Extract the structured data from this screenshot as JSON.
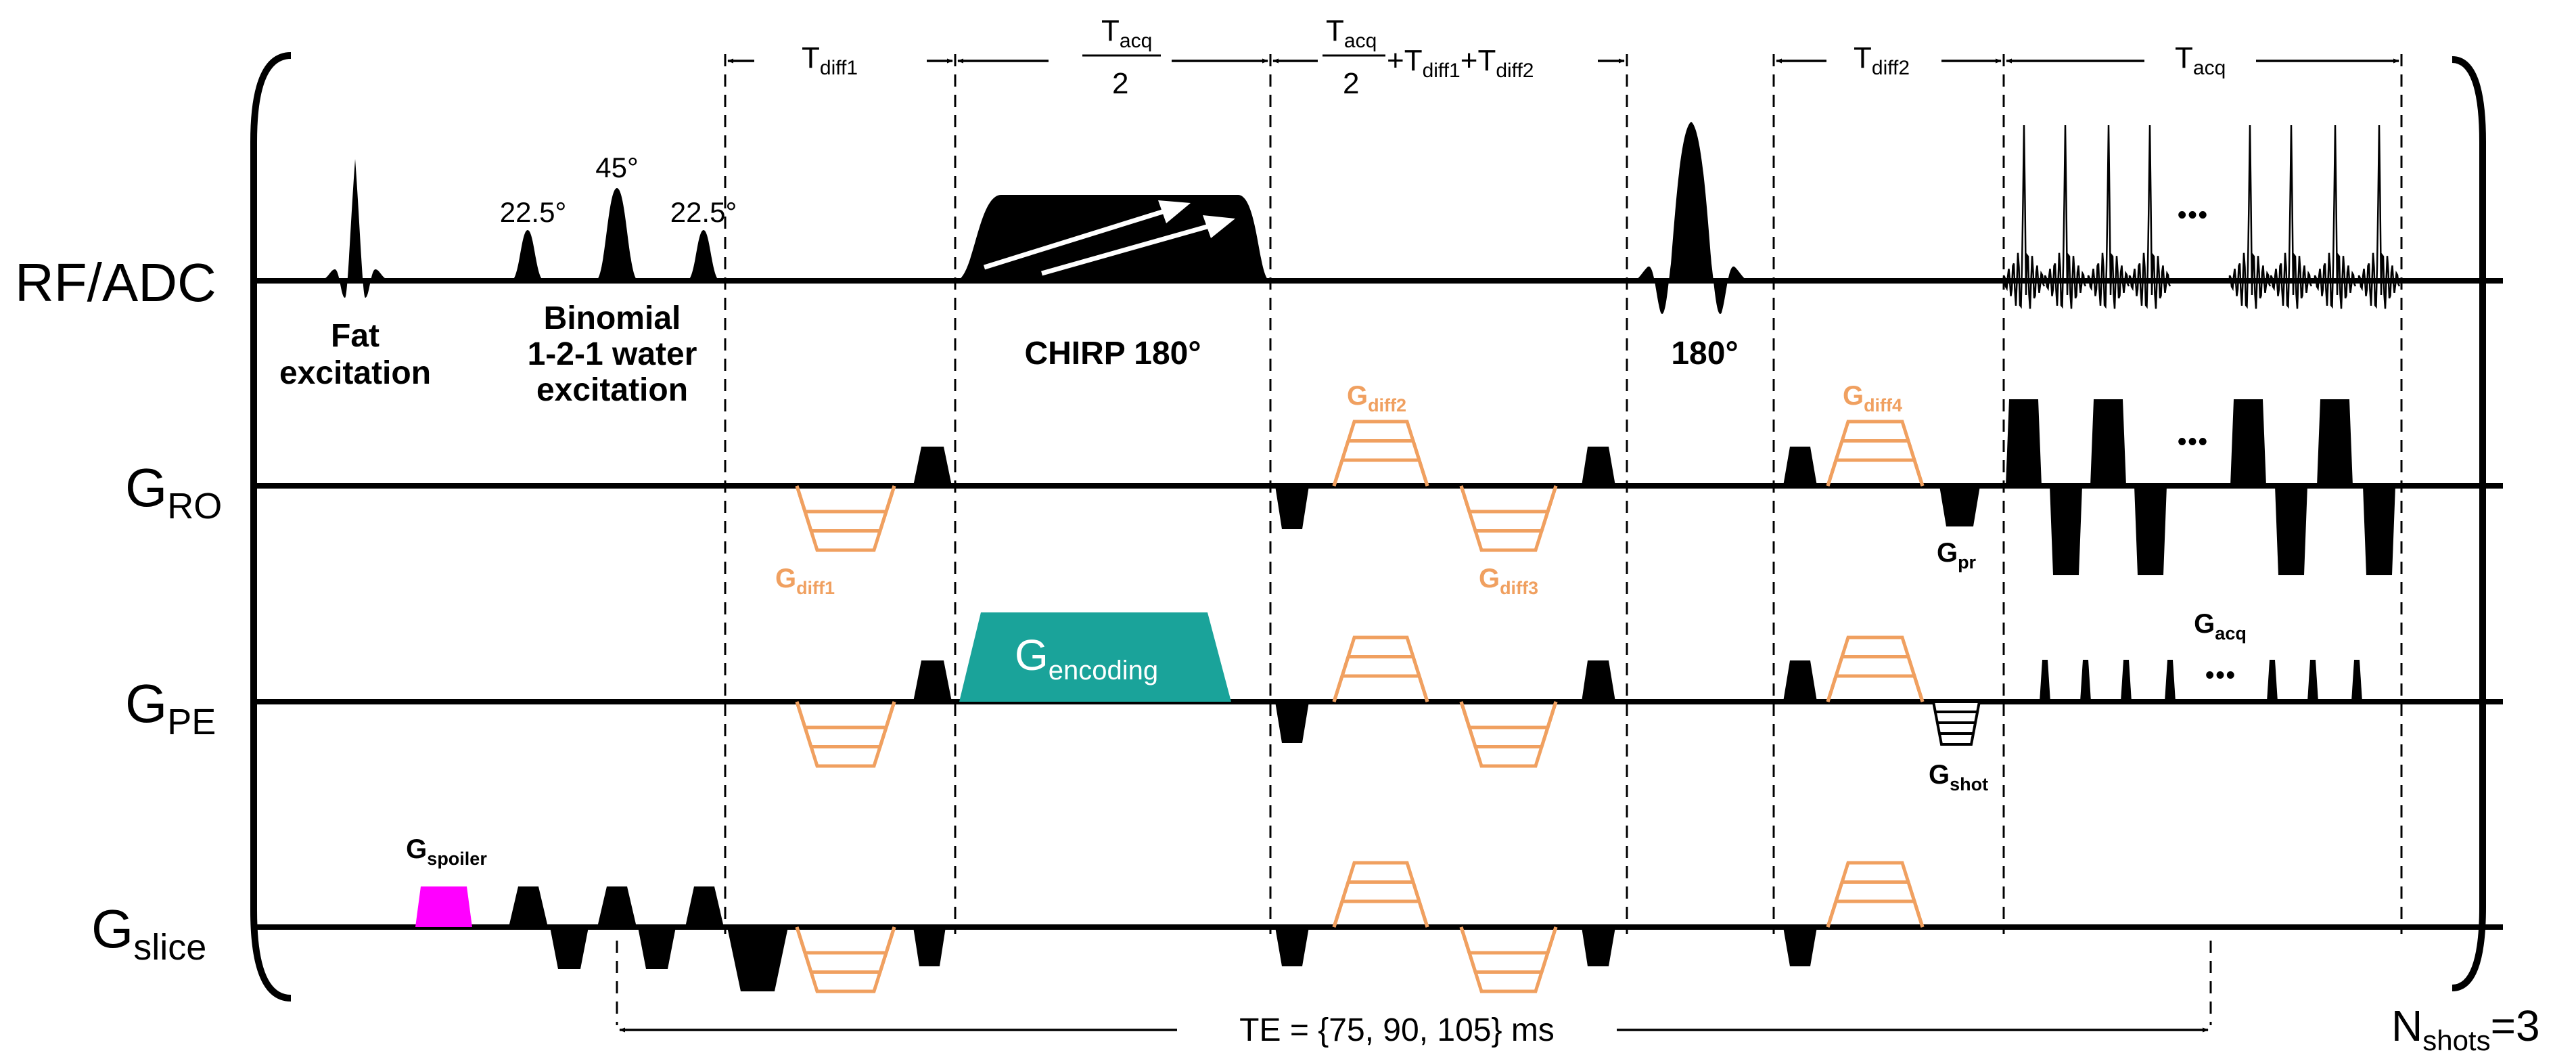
{
  "colors": {
    "ink": "#000000",
    "diff": "#f0a060",
    "encoding": "#1aa39a",
    "spoiler": "#ff00ff"
  },
  "row_labels": {
    "rf": {
      "main": "RF/ADC"
    },
    "ro": {
      "main": "G",
      "sub": "RO"
    },
    "pe": {
      "main": "G",
      "sub": "PE"
    },
    "slice": {
      "main": "G",
      "sub": "slice"
    }
  },
  "timing": {
    "tdiff1": {
      "main": "T",
      "sub": "diff1"
    },
    "tacq_half": {
      "num_main": "T",
      "num_sub": "acq",
      "den": "2"
    },
    "combo": {
      "num_main": "T",
      "num_sub": "acq",
      "den": "2",
      "plus1": "+T",
      "sub1": "diff1",
      "plus2": "+T",
      "sub2": "diff2"
    },
    "tdiff2": {
      "main": "T",
      "sub": "diff2"
    },
    "tacq": {
      "main": "T",
      "sub": "acq"
    }
  },
  "rf": {
    "flip_angles": [
      "22.5°",
      "45°",
      "22.5°"
    ],
    "fat_line1": "Fat",
    "fat_line2": "excitation",
    "binom_line1": "Binomial",
    "binom_line2": "1-2-1 water",
    "binom_line3": "excitation",
    "chirp_label": "CHIRP 180°",
    "refocus_label": "180°",
    "dots": "•••"
  },
  "gradients": {
    "gdiff1": {
      "main": "G",
      "sub": "diff1"
    },
    "gdiff2": {
      "main": "G",
      "sub": "diff2"
    },
    "gdiff3": {
      "main": "G",
      "sub": "diff3"
    },
    "gdiff4": {
      "main": "G",
      "sub": "diff4"
    },
    "gpr": {
      "main": "G",
      "sub": "pr"
    },
    "gacq": {
      "main": "G",
      "sub": "acq"
    },
    "gencoding": {
      "main": "G",
      "sub": "encoding"
    },
    "gshot": {
      "main": "G",
      "sub": "shot"
    },
    "gspoiler": {
      "main": "G",
      "sub": "spoiler"
    },
    "dots_ro": "•••",
    "dots_pe": "•••"
  },
  "te_label": "TE = {75, 90, 105} ms",
  "nshots": {
    "main": "N",
    "sub": "shots",
    "value": "=3"
  }
}
